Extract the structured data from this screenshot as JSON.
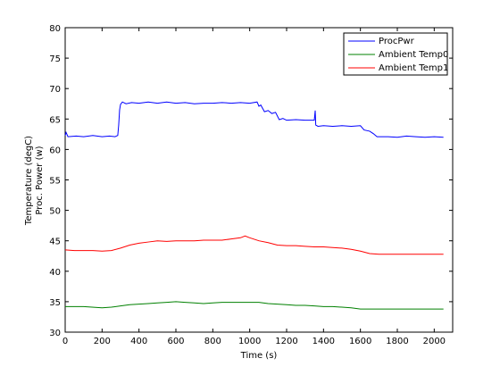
{
  "chart_data": {
    "type": "line",
    "title": "",
    "xlabel": "Time (s)",
    "ylabel_lines": [
      "Temperature (degC)",
      "Proc. Power (w)"
    ],
    "xlim": [
      0,
      2100
    ],
    "ylim": [
      30,
      80
    ],
    "xticks": [
      0,
      200,
      400,
      600,
      800,
      1000,
      1200,
      1400,
      1600,
      1800,
      2000
    ],
    "yticks": [
      30,
      35,
      40,
      45,
      50,
      55,
      60,
      65,
      70,
      75,
      80
    ],
    "grid": false,
    "legend_position": "top-right",
    "series": [
      {
        "name": "ProcPwr",
        "color": "#0000ff",
        "points": [
          [
            0,
            62.3
          ],
          [
            5,
            62.8
          ],
          [
            15,
            62.1
          ],
          [
            60,
            62.2
          ],
          [
            100,
            62.1
          ],
          [
            150,
            62.3
          ],
          [
            200,
            62.1
          ],
          [
            240,
            62.2
          ],
          [
            270,
            62.1
          ],
          [
            285,
            62.3
          ],
          [
            290,
            64.0
          ],
          [
            295,
            66.5
          ],
          [
            300,
            67.4
          ],
          [
            310,
            67.8
          ],
          [
            330,
            67.5
          ],
          [
            360,
            67.7
          ],
          [
            400,
            67.6
          ],
          [
            450,
            67.8
          ],
          [
            500,
            67.6
          ],
          [
            550,
            67.8
          ],
          [
            600,
            67.6
          ],
          [
            650,
            67.7
          ],
          [
            700,
            67.5
          ],
          [
            750,
            67.6
          ],
          [
            800,
            67.6
          ],
          [
            850,
            67.7
          ],
          [
            900,
            67.6
          ],
          [
            950,
            67.7
          ],
          [
            1000,
            67.6
          ],
          [
            1040,
            67.8
          ],
          [
            1050,
            67.1
          ],
          [
            1060,
            67.3
          ],
          [
            1080,
            66.2
          ],
          [
            1100,
            66.4
          ],
          [
            1120,
            65.9
          ],
          [
            1140,
            66.1
          ],
          [
            1160,
            64.9
          ],
          [
            1180,
            65.1
          ],
          [
            1200,
            64.8
          ],
          [
            1250,
            64.9
          ],
          [
            1300,
            64.8
          ],
          [
            1350,
            64.8
          ],
          [
            1355,
            66.4
          ],
          [
            1358,
            64.0
          ],
          [
            1370,
            63.8
          ],
          [
            1400,
            63.9
          ],
          [
            1450,
            63.8
          ],
          [
            1500,
            63.9
          ],
          [
            1550,
            63.8
          ],
          [
            1600,
            63.9
          ],
          [
            1620,
            63.2
          ],
          [
            1650,
            63.0
          ],
          [
            1670,
            62.6
          ],
          [
            1690,
            62.1
          ],
          [
            1750,
            62.1
          ],
          [
            1800,
            62.0
          ],
          [
            1850,
            62.2
          ],
          [
            1900,
            62.1
          ],
          [
            1950,
            62.0
          ],
          [
            2000,
            62.1
          ],
          [
            2050,
            62.0
          ]
        ]
      },
      {
        "name": "Ambient Temp0",
        "color": "#008000",
        "points": [
          [
            0,
            34.2
          ],
          [
            100,
            34.2
          ],
          [
            200,
            34.0
          ],
          [
            250,
            34.1
          ],
          [
            300,
            34.3
          ],
          [
            350,
            34.5
          ],
          [
            400,
            34.6
          ],
          [
            450,
            34.7
          ],
          [
            500,
            34.8
          ],
          [
            550,
            34.9
          ],
          [
            600,
            35.0
          ],
          [
            650,
            34.9
          ],
          [
            700,
            34.8
          ],
          [
            750,
            34.7
          ],
          [
            800,
            34.8
          ],
          [
            850,
            34.9
          ],
          [
            900,
            34.9
          ],
          [
            950,
            34.9
          ],
          [
            1000,
            34.9
          ],
          [
            1050,
            34.9
          ],
          [
            1100,
            34.7
          ],
          [
            1150,
            34.6
          ],
          [
            1200,
            34.5
          ],
          [
            1250,
            34.4
          ],
          [
            1300,
            34.4
          ],
          [
            1350,
            34.3
          ],
          [
            1400,
            34.2
          ],
          [
            1450,
            34.2
          ],
          [
            1500,
            34.1
          ],
          [
            1550,
            34.0
          ],
          [
            1600,
            33.8
          ],
          [
            1650,
            33.8
          ],
          [
            1700,
            33.8
          ],
          [
            1750,
            33.8
          ],
          [
            1800,
            33.8
          ],
          [
            1900,
            33.8
          ],
          [
            2000,
            33.8
          ],
          [
            2050,
            33.8
          ]
        ]
      },
      {
        "name": "Ambient Temp1",
        "color": "#ff0000",
        "points": [
          [
            0,
            43.5
          ],
          [
            50,
            43.4
          ],
          [
            100,
            43.4
          ],
          [
            150,
            43.4
          ],
          [
            200,
            43.3
          ],
          [
            250,
            43.4
          ],
          [
            300,
            43.8
          ],
          [
            350,
            44.3
          ],
          [
            400,
            44.6
          ],
          [
            450,
            44.8
          ],
          [
            500,
            45.0
          ],
          [
            550,
            44.9
          ],
          [
            600,
            45.0
          ],
          [
            650,
            45.0
          ],
          [
            700,
            45.0
          ],
          [
            750,
            45.1
          ],
          [
            800,
            45.1
          ],
          [
            850,
            45.1
          ],
          [
            900,
            45.3
          ],
          [
            950,
            45.5
          ],
          [
            975,
            45.8
          ],
          [
            1000,
            45.5
          ],
          [
            1050,
            45.0
          ],
          [
            1100,
            44.7
          ],
          [
            1150,
            44.3
          ],
          [
            1200,
            44.2
          ],
          [
            1250,
            44.2
          ],
          [
            1300,
            44.1
          ],
          [
            1350,
            44.0
          ],
          [
            1400,
            44.0
          ],
          [
            1450,
            43.9
          ],
          [
            1500,
            43.8
          ],
          [
            1550,
            43.6
          ],
          [
            1600,
            43.3
          ],
          [
            1650,
            42.9
          ],
          [
            1700,
            42.8
          ],
          [
            1750,
            42.8
          ],
          [
            1800,
            42.8
          ],
          [
            1900,
            42.8
          ],
          [
            2000,
            42.8
          ],
          [
            2050,
            42.8
          ]
        ]
      }
    ]
  }
}
